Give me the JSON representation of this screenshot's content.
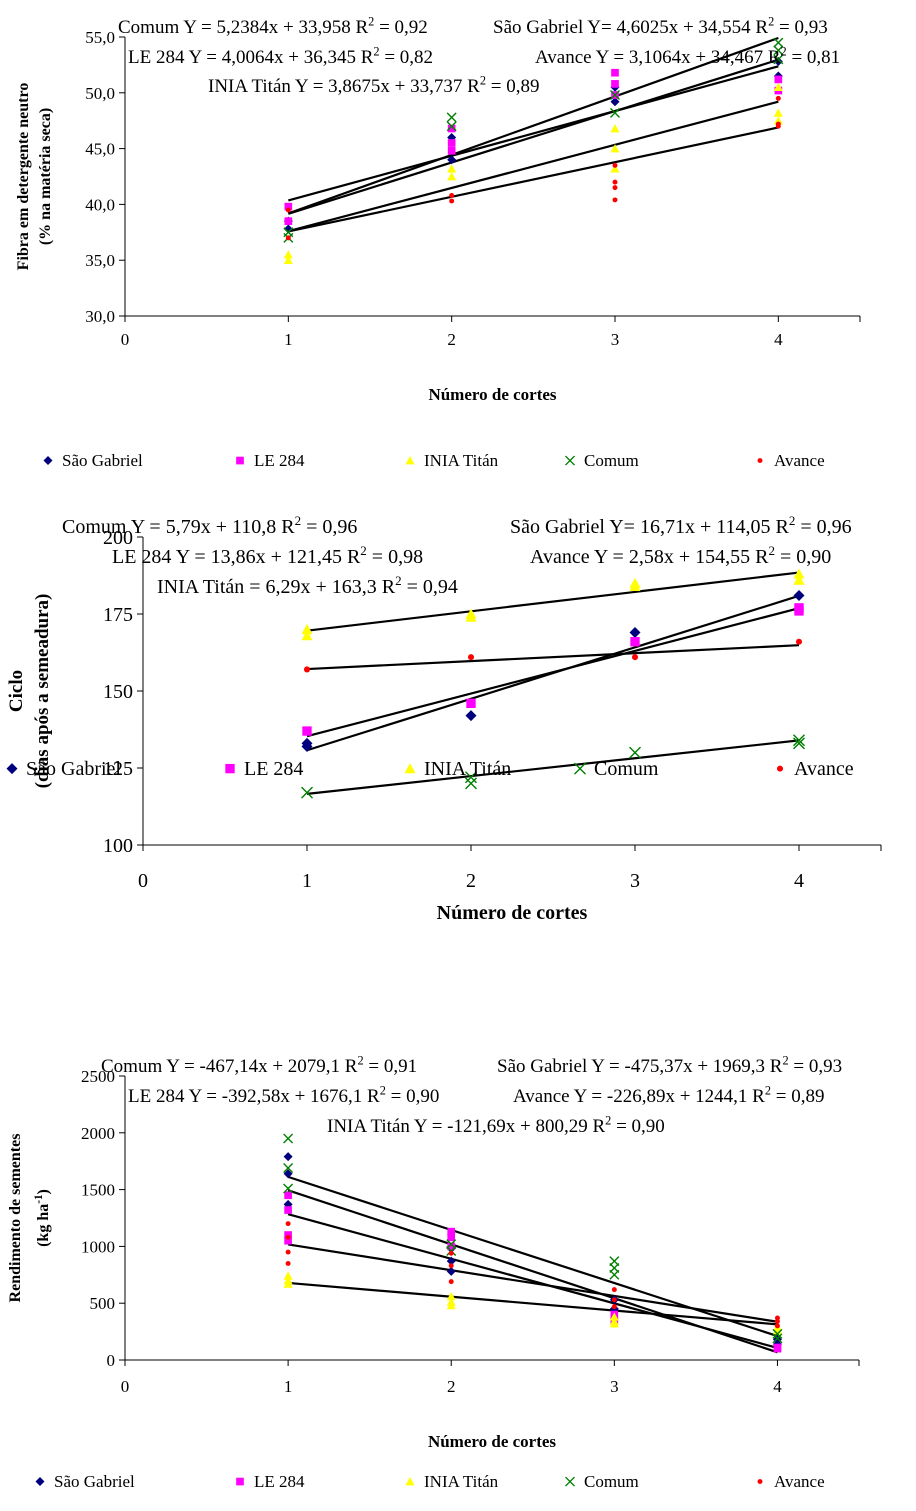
{
  "colors": {
    "sao_gabriel": "#00007f",
    "le284": "#ff00ff",
    "inia_titan": "#ffff00",
    "comum": "#007f00",
    "avance": "#ff0000",
    "fit_line": "#000000"
  },
  "chart_data": [
    {
      "type": "scatter",
      "ylabel": "Fibra em detergente neutro",
      "ylabel2": "(% na matéria seca)",
      "xlabel": "Número de cortes",
      "xlim": [
        0,
        4.5
      ],
      "ylim": [
        30,
        55
      ],
      "xticks": [
        "0",
        "1",
        "2",
        "3",
        "4"
      ],
      "yticks": [
        "30,0",
        "35,0",
        "40,0",
        "45,0",
        "50,0",
        "55,0"
      ],
      "yticks_values": [
        30,
        35,
        40,
        45,
        50,
        55
      ],
      "equations": [
        "Comum Y = 5,2384x + 33,958 R² = 0,92",
        "São Gabriel Y= 4,6025x + 34,554 R² = 0,93",
        "LE 284 Y = 4,0064x + 36,345 R² = 0,82",
        "Avance Y = 3,1064x + 34,467 R² = 0,81",
        "INIA Titán Y = 3,8675x + 33,737 R² = 0,89"
      ],
      "legend": [
        "São Gabriel",
        "LE 284",
        "INIA Titán",
        "Comum",
        "Avance"
      ],
      "series": [
        {
          "name": "São Gabriel",
          "marker": "diamond",
          "slope": 4.6025,
          "intercept": 34.554,
          "points": [
            [
              1,
              38.5
            ],
            [
              1,
              37.8
            ],
            [
              2,
              46.0
            ],
            [
              2,
              44.0
            ],
            [
              3,
              50.5
            ],
            [
              3,
              49.2
            ],
            [
              4,
              52.8
            ],
            [
              4,
              51.5
            ]
          ]
        },
        {
          "name": "LE 284",
          "marker": "square",
          "slope": 4.0064,
          "intercept": 36.345,
          "points": [
            [
              1,
              39.8
            ],
            [
              1,
              38.5
            ],
            [
              2,
              46.8
            ],
            [
              2,
              45.5
            ],
            [
              2,
              44.8
            ],
            [
              3,
              51.8
            ],
            [
              3,
              50.8
            ],
            [
              3,
              49.8
            ],
            [
              4,
              51.2
            ],
            [
              4,
              50.2
            ]
          ]
        },
        {
          "name": "INIA Titán",
          "marker": "triangle",
          "slope": 3.8675,
          "intercept": 33.737,
          "points": [
            [
              1,
              35.5
            ],
            [
              1,
              35.0
            ],
            [
              2,
              43.2
            ],
            [
              2,
              42.5
            ],
            [
              3,
              46.8
            ],
            [
              3,
              45.0
            ],
            [
              3,
              43.2
            ],
            [
              4,
              48.2
            ],
            [
              4,
              47.5
            ],
            [
              4,
              50.5
            ]
          ]
        },
        {
          "name": "Comum",
          "marker": "x",
          "slope": 5.2384,
          "intercept": 33.958,
          "points": [
            [
              1,
              37.5
            ],
            [
              1,
              37.0
            ],
            [
              2,
              47.8
            ],
            [
              2,
              47.0
            ],
            [
              3,
              49.8
            ],
            [
              3,
              48.2
            ],
            [
              4,
              54.5
            ],
            [
              4,
              53.8
            ],
            [
              4,
              53.0
            ]
          ]
        },
        {
          "name": "Avance",
          "marker": "dot",
          "slope": 3.1064,
          "intercept": 34.467,
          "points": [
            [
              1,
              39.5
            ],
            [
              1,
              37.0
            ],
            [
              2,
              40.8
            ],
            [
              2,
              40.3
            ],
            [
              3,
              43.5
            ],
            [
              3,
              42.0
            ],
            [
              3,
              41.5
            ],
            [
              3,
              40.4
            ],
            [
              4,
              49.5
            ],
            [
              4,
              47.2
            ],
            [
              4,
              47.0
            ]
          ]
        }
      ]
    },
    {
      "type": "scatter",
      "ylabel": "Ciclo",
      "ylabel2": "(dias após a semeadura)",
      "xlabel": "Número de cortes",
      "xlim": [
        0,
        4.5
      ],
      "ylim": [
        100,
        200
      ],
      "xticks": [
        "0",
        "1",
        "2",
        "3",
        "4"
      ],
      "yticks": [
        "100",
        "125",
        "150",
        "175",
        "200"
      ],
      "yticks_values": [
        100,
        125,
        150,
        175,
        200
      ],
      "equations": [
        "Comum Y = 5,79x + 110,8 R² = 0,96",
        "São Gabriel Y= 16,71x + 114,05 R² = 0,96",
        "LE 284 Y = 13,86x + 121,45 R² = 0,98",
        "Avance Y = 2,58x + 154,55 R² = 0,90",
        "INIA Titán = 6,29x + 163,3 R² = 0,94"
      ],
      "legend": [
        "São Gabriel",
        "LE 284",
        "INIA Titán",
        "Comum",
        "Avance"
      ],
      "series": [
        {
          "name": "São Gabriel",
          "marker": "diamond",
          "slope": 16.71,
          "intercept": 114.05,
          "points": [
            [
              1,
              133
            ],
            [
              1,
              132
            ],
            [
              2,
              142
            ],
            [
              3,
              169
            ],
            [
              4,
              181
            ]
          ]
        },
        {
          "name": "LE 284",
          "marker": "square",
          "slope": 13.86,
          "intercept": 121.45,
          "points": [
            [
              1,
              137
            ],
            [
              2,
              146
            ],
            [
              3,
              166
            ],
            [
              4,
              177
            ],
            [
              4,
              176
            ]
          ]
        },
        {
          "name": "INIA Titán",
          "marker": "triangle",
          "slope": 6.29,
          "intercept": 163.3,
          "points": [
            [
              1,
              170
            ],
            [
              1,
              168
            ],
            [
              2,
              174
            ],
            [
              2,
              175
            ],
            [
              3,
              184
            ],
            [
              3,
              185
            ],
            [
              4,
              186
            ],
            [
              4,
              188
            ]
          ]
        },
        {
          "name": "Comum",
          "marker": "x",
          "slope": 5.79,
          "intercept": 110.8,
          "points": [
            [
              1,
              117
            ],
            [
              2,
              122
            ],
            [
              2,
              120
            ],
            [
              3,
              130
            ],
            [
              4,
              134
            ],
            [
              4,
              133
            ]
          ]
        },
        {
          "name": "Avance",
          "marker": "dot",
          "slope": 2.58,
          "intercept": 154.55,
          "points": [
            [
              1,
              157
            ],
            [
              2,
              161
            ],
            [
              3,
              161
            ],
            [
              4,
              166
            ]
          ]
        }
      ]
    },
    {
      "type": "scatter",
      "ylabel": "Rendimento de sementes",
      "ylabel2": "(kg ha-1)",
      "ylabel2_base": "(kg ha",
      "ylabel2_sup": "-1",
      "ylabel2_end": ")",
      "xlabel": "Número de cortes",
      "xlim": [
        0,
        4.5
      ],
      "ylim": [
        0,
        2500
      ],
      "xticks": [
        "0",
        "1",
        "2",
        "3",
        "4"
      ],
      "yticks": [
        "0",
        "500",
        "1000",
        "1500",
        "2000",
        "2500"
      ],
      "yticks_values": [
        0,
        500,
        1000,
        1500,
        2000,
        2500
      ],
      "equations": [
        "Comum Y = -467,14x + 2079,1 R² = 0,91",
        "São Gabriel Y = -475,37x + 1969,3 R² = 0,93",
        "LE 284 Y = -392,58x + 1676,1 R² = 0,90",
        "Avance Y = -226,89x + 1244,1 R² = 0,89",
        "INIA Titán Y = -121,69x + 800,29 R² = 0,90"
      ],
      "legend": [
        "São Gabriel",
        "LE 284",
        "INIA Titán",
        "Comum",
        "Avance"
      ],
      "series": [
        {
          "name": "São Gabriel",
          "marker": "diamond",
          "slope": -475.37,
          "intercept": 1969.3,
          "points": [
            [
              1,
              1790
            ],
            [
              1,
              1640
            ],
            [
              1,
              1370
            ],
            [
              2,
              980
            ],
            [
              2,
              870
            ],
            [
              2,
              780
            ],
            [
              3,
              530
            ],
            [
              3,
              450
            ],
            [
              4,
              180
            ],
            [
              4,
              140
            ]
          ]
        },
        {
          "name": "LE 284",
          "marker": "square",
          "slope": -392.58,
          "intercept": 1676.1,
          "points": [
            [
              1,
              1450
            ],
            [
              1,
              1320
            ],
            [
              1,
              1100
            ],
            [
              1,
              1050
            ],
            [
              2,
              1130
            ],
            [
              2,
              1080
            ],
            [
              2,
              1000
            ],
            [
              3,
              400
            ],
            [
              3,
              350
            ],
            [
              4,
              110
            ],
            [
              4,
              100
            ]
          ]
        },
        {
          "name": "INIA Titán",
          "marker": "triangle",
          "slope": -121.69,
          "intercept": 800.29,
          "points": [
            [
              1,
              740
            ],
            [
              1,
              700
            ],
            [
              1,
              670
            ],
            [
              2,
              560
            ],
            [
              2,
              510
            ],
            [
              2,
              480
            ],
            [
              3,
              380
            ],
            [
              3,
              340
            ],
            [
              3,
              320
            ],
            [
              4,
              290
            ],
            [
              4,
              260
            ]
          ]
        },
        {
          "name": "Comum",
          "marker": "x",
          "slope": -467.14,
          "intercept": 2079.1,
          "points": [
            [
              1,
              1950
            ],
            [
              1,
              1690
            ],
            [
              1,
              1510
            ],
            [
              2,
              1020
            ],
            [
              2,
              960
            ],
            [
              3,
              870
            ],
            [
              3,
              810
            ],
            [
              3,
              750
            ],
            [
              4,
              230
            ],
            [
              4,
              190
            ]
          ]
        },
        {
          "name": "Avance",
          "marker": "dot",
          "slope": -226.89,
          "intercept": 1244.1,
          "points": [
            [
              1,
              1200
            ],
            [
              1,
              1080
            ],
            [
              1,
              950
            ],
            [
              1,
              850
            ],
            [
              2,
              940
            ],
            [
              2,
              830
            ],
            [
              2,
              690
            ],
            [
              3,
              620
            ],
            [
              3,
              530
            ],
            [
              3,
              470
            ],
            [
              4,
              370
            ],
            [
              4,
              340
            ],
            [
              4,
              300
            ]
          ]
        }
      ]
    }
  ]
}
